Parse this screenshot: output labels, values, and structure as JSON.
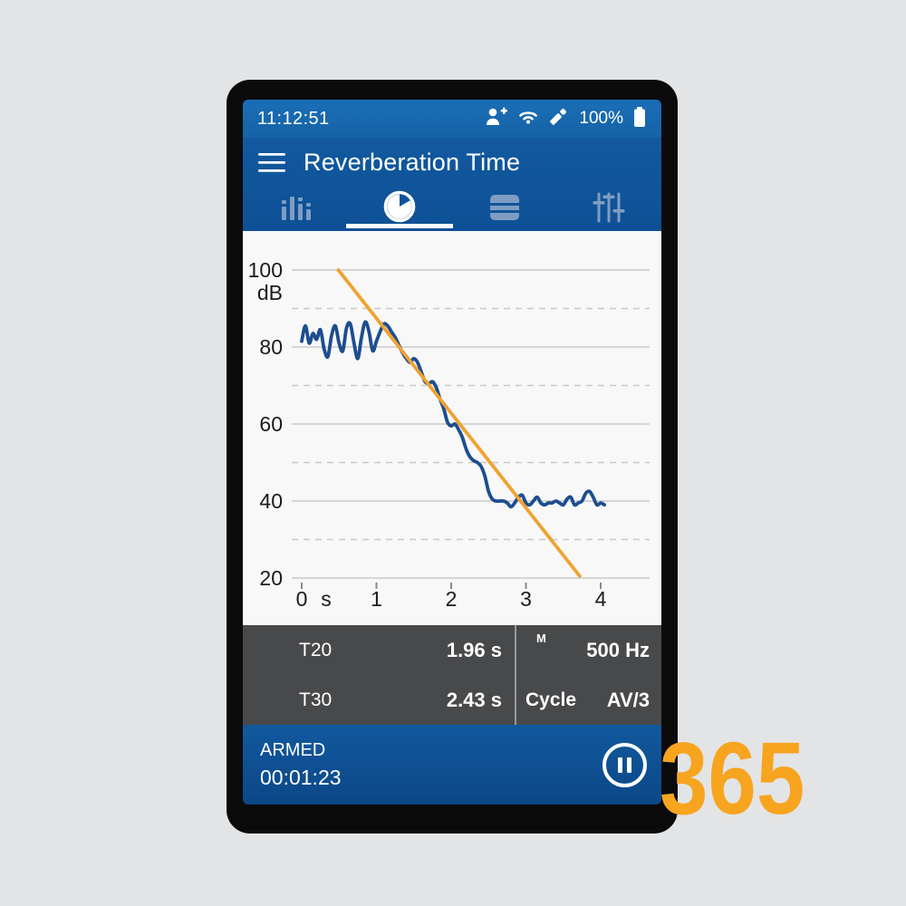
{
  "status_bar": {
    "time": "11:12:51",
    "battery_percent": "100%",
    "icons": [
      "person-add-icon",
      "wifi-icon",
      "pencil-icon",
      "battery-icon"
    ]
  },
  "header": {
    "title": "Reverberation Time",
    "menu_icon": "hamburger-menu-icon"
  },
  "tabs": [
    {
      "name": "levels",
      "icon": "bar-chart-icon",
      "active": false
    },
    {
      "name": "reverberation-decay",
      "icon": "decay-clock-icon",
      "active": true
    },
    {
      "name": "results-table",
      "icon": "table-icon",
      "active": false
    },
    {
      "name": "settings",
      "icon": "sliders-icon",
      "active": false
    }
  ],
  "chart_data": {
    "type": "line",
    "title": "",
    "xlabel": "s",
    "ylabel": "dB",
    "x_ticks": [
      0,
      1,
      2,
      3,
      4
    ],
    "y_ticks": [
      100,
      80,
      60,
      40,
      20
    ],
    "y_minor_ticks": [
      90,
      70,
      50,
      30
    ],
    "xlim": [
      -0.15,
      4.6
    ],
    "ylim": [
      20,
      100
    ],
    "grid": "major solid, minor dashed, horizontal only",
    "legend": "none",
    "grid_color": "#c9c9c9",
    "tick_color": "#1b1b1b",
    "series": [
      {
        "name": "decay-curve",
        "color": "#1d4e8e",
        "t0": 0,
        "dt": 0.05,
        "y": [
          81.5,
          85.5,
          81,
          83.5,
          82,
          84.5,
          79.5,
          77.5,
          83,
          85.5,
          81,
          79,
          85,
          86,
          81,
          77,
          82.5,
          86.5,
          84,
          79,
          81.5,
          84,
          86,
          85.5,
          84,
          82.5,
          80.5,
          78.5,
          77,
          76,
          77,
          76,
          73.5,
          71,
          70.5,
          71,
          69.5,
          66.5,
          64,
          60.5,
          59.5,
          60,
          58.5,
          56.5,
          53.5,
          51.5,
          50.5,
          50,
          49,
          46.5,
          42.5,
          40.5,
          40,
          40,
          40,
          39.5,
          38.5,
          39.5,
          41,
          41.5,
          39.5,
          39,
          40,
          41,
          39.5,
          39,
          39.5,
          39.5,
          40,
          39.5,
          39,
          40.5,
          41,
          39,
          39.5,
          40,
          42,
          42.5,
          41,
          39,
          39.5,
          39
        ]
      },
      {
        "name": "regression-line",
        "color": "#f0a232",
        "x": [
          0.49,
          3.72
        ],
        "y": [
          100,
          20.5
        ]
      }
    ]
  },
  "results": {
    "rows": [
      {
        "label": "T20",
        "value": "1.96 s"
      },
      {
        "label": "T30",
        "value": "2.43 s"
      }
    ],
    "mode_indicator": "M",
    "frequency": "500 Hz",
    "cycle_label": "Cycle",
    "cycle_value": "AV/3"
  },
  "control_bar": {
    "status": "ARMED",
    "elapsed": "00:01:23",
    "button_icon": "pause-icon"
  },
  "branding": {
    "number": "365",
    "color": "#f7a41f"
  },
  "colors": {
    "page_background": "#e3e4e6",
    "bezel": "#0b0b0c",
    "status_bar_blue": "#1766ad",
    "header_blue": "#11589f",
    "bottom_bar_blue": "#0f5094",
    "panel_gray": "#48494b",
    "chart_background": "#f8f8f9",
    "inactive_tab": "#7f9dc2",
    "curve_blue": "#1d4e8e",
    "regression_orange": "#f0a232"
  }
}
